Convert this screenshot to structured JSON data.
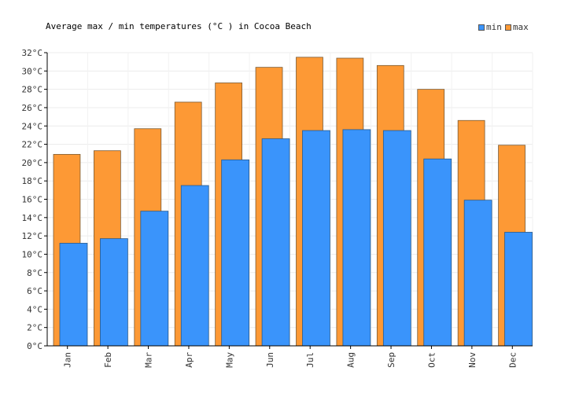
{
  "chart_data": {
    "type": "bar",
    "title": "Average max / min temperatures (°C ) in Cocoa Beach",
    "xlabel": "",
    "ylabel": "",
    "ylim": [
      0,
      32
    ],
    "y_ticks": [
      "0°C",
      "2°C",
      "4°C",
      "6°C",
      "8°C",
      "10°C",
      "12°C",
      "14°C",
      "16°C",
      "18°C",
      "20°C",
      "22°C",
      "24°C",
      "26°C",
      "28°C",
      "30°C",
      "32°C"
    ],
    "categories": [
      "Jan",
      "Feb",
      "Mar",
      "Apr",
      "May",
      "Jun",
      "Jul",
      "Aug",
      "Sep",
      "Oct",
      "Nov",
      "Dec"
    ],
    "series": [
      {
        "name": "min",
        "color": "#3a94fb",
        "values": [
          11.2,
          11.7,
          14.7,
          17.5,
          20.3,
          22.6,
          23.5,
          23.6,
          23.5,
          20.4,
          15.9,
          12.4
        ]
      },
      {
        "name": "max",
        "color": "#fd9935",
        "values": [
          20.9,
          21.3,
          23.7,
          26.6,
          28.7,
          30.4,
          31.5,
          31.4,
          30.6,
          28.0,
          24.6,
          21.9
        ]
      }
    ],
    "grid": true,
    "legend_position": "top-right"
  }
}
